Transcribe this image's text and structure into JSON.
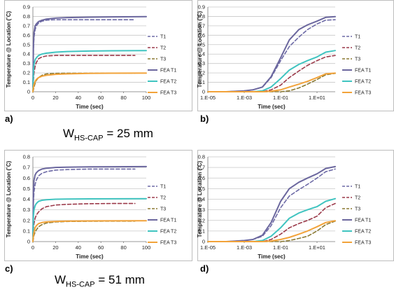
{
  "chart_data": [
    {
      "id": "a",
      "type": "line",
      "panel_label": "a)",
      "xscale": "linear",
      "xlim": [
        0,
        100
      ],
      "ylim": [
        0,
        0.9
      ],
      "xticks": [
        "0",
        "20",
        "40",
        "60",
        "80",
        "100"
      ],
      "yticks": [
        "0",
        "0.1",
        "0.2",
        "0.3",
        "0.4",
        "0.5",
        "0.6",
        "0.7",
        "0.8",
        "0.9"
      ],
      "xlabel": "Time (sec)",
      "ylabel": "Temperature @ Location (˚C)",
      "grid": "horizontal",
      "legend_position": "right",
      "series": [
        {
          "name": "T1",
          "color": "#6d6aa6",
          "dash": true,
          "x": [
            0,
            0.5,
            1,
            2,
            3,
            5,
            8,
            12,
            20,
            30,
            50,
            70,
            90
          ],
          "y": [
            0.05,
            0.45,
            0.58,
            0.66,
            0.7,
            0.73,
            0.75,
            0.76,
            0.765,
            0.765,
            0.765,
            0.765,
            0.765
          ]
        },
        {
          "name": "T2",
          "color": "#9b3a4a",
          "dash": true,
          "x": [
            0,
            0.5,
            1,
            2,
            3,
            5,
            8,
            12,
            20,
            30,
            50,
            70,
            90
          ],
          "y": [
            0.0,
            0.12,
            0.2,
            0.27,
            0.31,
            0.35,
            0.37,
            0.38,
            0.385,
            0.385,
            0.385,
            0.385,
            0.385
          ]
        },
        {
          "name": "T3",
          "color": "#8b7a33",
          "dash": true,
          "x": [
            0,
            0.5,
            1,
            2,
            3,
            5,
            8,
            12,
            20,
            30,
            50,
            70,
            90
          ],
          "y": [
            0.0,
            0.02,
            0.05,
            0.09,
            0.12,
            0.15,
            0.175,
            0.19,
            0.195,
            0.197,
            0.197,
            0.197,
            0.197
          ]
        },
        {
          "name": "FEA T1",
          "color": "#6b679e",
          "dash": false,
          "x": [
            0,
            0.5,
            1,
            2,
            3,
            5,
            8,
            12,
            20,
            30,
            50,
            70,
            100
          ],
          "y": [
            0.05,
            0.5,
            0.63,
            0.7,
            0.72,
            0.745,
            0.76,
            0.772,
            0.782,
            0.788,
            0.792,
            0.795,
            0.797
          ]
        },
        {
          "name": "FEA T2",
          "color": "#40c4c0",
          "dash": false,
          "x": [
            0,
            0.5,
            1,
            2,
            3,
            5,
            8,
            12,
            20,
            30,
            50,
            70,
            100
          ],
          "y": [
            0.0,
            0.22,
            0.29,
            0.34,
            0.36,
            0.385,
            0.4,
            0.41,
            0.42,
            0.427,
            0.432,
            0.435,
            0.437
          ]
        },
        {
          "name": "FEA T3",
          "color": "#f2a33a",
          "dash": false,
          "x": [
            0,
            0.5,
            1,
            2,
            3,
            5,
            8,
            12,
            20,
            30,
            50,
            70,
            100
          ],
          "y": [
            0.0,
            0.05,
            0.08,
            0.11,
            0.13,
            0.15,
            0.165,
            0.175,
            0.185,
            0.19,
            0.195,
            0.197,
            0.198
          ]
        }
      ]
    },
    {
      "id": "b",
      "type": "line",
      "panel_label": "b)",
      "xscale": "log",
      "xlim": [
        1e-05,
        100
      ],
      "ylim": [
        0,
        0.9
      ],
      "xticks": [
        "1.E-05",
        "1.E-03",
        "1.E-01",
        "1.E+01"
      ],
      "xtick_values": [
        1e-05,
        0.001,
        0.1,
        10
      ],
      "yticks": [
        "0",
        "0.1",
        "0.2",
        "0.3",
        "0.4",
        "0.5",
        "0.6",
        "0.7",
        "0.8",
        "0.9"
      ],
      "xlabel": "Time (sec)",
      "ylabel": "Temperature @ Location (˚C)",
      "grid": "horizontal",
      "legend_position": "right",
      "series": [
        {
          "name": "T1",
          "color": "#6d6aa6",
          "dash": true,
          "x": [
            1e-05,
            0.0001,
            0.001,
            0.003,
            0.01,
            0.03,
            0.1,
            0.3,
            1,
            3,
            10,
            30,
            100
          ],
          "y": [
            0.0,
            0.0,
            0.01,
            0.02,
            0.05,
            0.15,
            0.33,
            0.48,
            0.58,
            0.66,
            0.72,
            0.76,
            0.765
          ]
        },
        {
          "name": "T2",
          "color": "#9b3a4a",
          "dash": true,
          "x": [
            1e-05,
            0.001,
            0.01,
            0.03,
            0.1,
            0.3,
            1,
            3,
            10,
            30,
            100
          ],
          "y": [
            0.0,
            0.0,
            0.0,
            0.02,
            0.07,
            0.15,
            0.22,
            0.28,
            0.33,
            0.37,
            0.385
          ]
        },
        {
          "name": "T3",
          "color": "#8b7a33",
          "dash": true,
          "x": [
            1e-05,
            0.01,
            0.1,
            0.3,
            1,
            3,
            10,
            30,
            100
          ],
          "y": [
            0.0,
            0.0,
            0.0,
            0.01,
            0.04,
            0.08,
            0.13,
            0.18,
            0.195
          ]
        },
        {
          "name": "FEA T1",
          "color": "#6b679e",
          "dash": false,
          "x": [
            1e-05,
            0.0001,
            0.001,
            0.003,
            0.01,
            0.03,
            0.1,
            0.3,
            1,
            3,
            10,
            30,
            100
          ],
          "y": [
            0.0,
            0.0,
            0.01,
            0.02,
            0.05,
            0.16,
            0.36,
            0.55,
            0.66,
            0.71,
            0.75,
            0.79,
            0.797
          ]
        },
        {
          "name": "FEA T2",
          "color": "#40c4c0",
          "dash": false,
          "x": [
            1e-05,
            0.003,
            0.01,
            0.03,
            0.1,
            0.3,
            1,
            3,
            10,
            30,
            100
          ],
          "y": [
            0.0,
            0.0,
            0.01,
            0.05,
            0.14,
            0.23,
            0.29,
            0.33,
            0.37,
            0.42,
            0.437
          ]
        },
        {
          "name": "FEA T3",
          "color": "#f2a33a",
          "dash": false,
          "x": [
            1e-05,
            0.01,
            0.03,
            0.1,
            0.3,
            1,
            3,
            10,
            30,
            100
          ],
          "y": [
            0.0,
            0.0,
            0.005,
            0.02,
            0.05,
            0.08,
            0.11,
            0.15,
            0.19,
            0.198
          ]
        }
      ]
    },
    {
      "id": "c",
      "type": "line",
      "panel_label": "c)",
      "xscale": "linear",
      "xlim": [
        0,
        100
      ],
      "ylim": [
        0,
        0.8
      ],
      "xticks": [
        "0",
        "20",
        "40",
        "60",
        "80",
        "100"
      ],
      "yticks": [
        "0",
        "0.1",
        "0.2",
        "0.3",
        "0.4",
        "0.5",
        "0.6",
        "0.7",
        "0.8"
      ],
      "xlabel": "Time (sec)",
      "ylabel": "Temperature @ Location (˚C)",
      "grid": "horizontal",
      "legend_position": "right",
      "series": [
        {
          "name": "T1",
          "color": "#6d6aa6",
          "dash": true,
          "x": [
            0,
            0.5,
            1,
            2,
            3,
            5,
            8,
            12,
            20,
            30,
            50,
            70,
            90
          ],
          "y": [
            0.05,
            0.38,
            0.47,
            0.54,
            0.58,
            0.62,
            0.645,
            0.66,
            0.675,
            0.68,
            0.685,
            0.685,
            0.685
          ]
        },
        {
          "name": "T2",
          "color": "#9b3a4a",
          "dash": true,
          "x": [
            0,
            0.5,
            1,
            2,
            3,
            5,
            8,
            12,
            20,
            30,
            50,
            70,
            90
          ],
          "y": [
            0.0,
            0.12,
            0.17,
            0.22,
            0.25,
            0.28,
            0.31,
            0.33,
            0.345,
            0.352,
            0.358,
            0.36,
            0.36
          ]
        },
        {
          "name": "T3",
          "color": "#8b7a33",
          "dash": true,
          "x": [
            0,
            0.5,
            1,
            2,
            3,
            5,
            8,
            12,
            20,
            30,
            50,
            70,
            90
          ],
          "y": [
            0.0,
            0.03,
            0.06,
            0.09,
            0.11,
            0.14,
            0.16,
            0.175,
            0.185,
            0.19,
            0.192,
            0.193,
            0.193
          ]
        },
        {
          "name": "FEA T1",
          "color": "#6b679e",
          "dash": false,
          "x": [
            0,
            0.5,
            1,
            2,
            3,
            5,
            8,
            12,
            20,
            30,
            50,
            70,
            100
          ],
          "y": [
            0.05,
            0.5,
            0.58,
            0.63,
            0.65,
            0.67,
            0.685,
            0.693,
            0.7,
            0.703,
            0.706,
            0.707,
            0.708
          ]
        },
        {
          "name": "FEA T2",
          "color": "#40c4c0",
          "dash": false,
          "x": [
            0,
            0.5,
            1,
            2,
            3,
            5,
            8,
            12,
            20,
            30,
            50,
            70,
            100
          ],
          "y": [
            0.0,
            0.25,
            0.3,
            0.34,
            0.36,
            0.38,
            0.39,
            0.395,
            0.4,
            0.402,
            0.403,
            0.404,
            0.405
          ]
        },
        {
          "name": "FEA T3",
          "color": "#f2a33a",
          "dash": false,
          "x": [
            0,
            0.5,
            1,
            2,
            3,
            5,
            8,
            12,
            20,
            30,
            50,
            70,
            100
          ],
          "y": [
            0.0,
            0.06,
            0.09,
            0.13,
            0.15,
            0.17,
            0.18,
            0.186,
            0.19,
            0.193,
            0.195,
            0.196,
            0.197
          ]
        }
      ]
    },
    {
      "id": "d",
      "type": "line",
      "panel_label": "d)",
      "xscale": "log",
      "xlim": [
        1e-05,
        100
      ],
      "ylim": [
        0,
        0.8
      ],
      "xticks": [
        "1.E-05",
        "1.E-03",
        "1.E-01",
        "1.E+01"
      ],
      "xtick_values": [
        1e-05,
        0.001,
        0.1,
        10
      ],
      "yticks": [
        "0",
        "0.1",
        "0.2",
        "0.3",
        "0.4",
        "0.5",
        "0.6",
        "0.7",
        "0.8"
      ],
      "xlabel": "Time (sec)",
      "ylabel": "Temperature @ Location (˚C)",
      "grid": "horizontal",
      "legend_position": "right",
      "series": [
        {
          "name": "T1",
          "color": "#6d6aa6",
          "dash": true,
          "x": [
            1e-05,
            0.0001,
            0.001,
            0.003,
            0.01,
            0.03,
            0.1,
            0.3,
            1,
            3,
            10,
            30,
            100
          ],
          "y": [
            0.0,
            0.0,
            0.01,
            0.02,
            0.05,
            0.15,
            0.32,
            0.43,
            0.49,
            0.54,
            0.6,
            0.66,
            0.685
          ]
        },
        {
          "name": "T2",
          "color": "#9b3a4a",
          "dash": true,
          "x": [
            1e-05,
            0.001,
            0.01,
            0.03,
            0.1,
            0.3,
            1,
            3,
            10,
            30,
            100
          ],
          "y": [
            0.0,
            0.0,
            0.0,
            0.02,
            0.07,
            0.13,
            0.17,
            0.2,
            0.24,
            0.32,
            0.36
          ]
        },
        {
          "name": "T3",
          "color": "#8b7a33",
          "dash": true,
          "x": [
            1e-05,
            0.01,
            0.1,
            0.3,
            1,
            3,
            10,
            30,
            100
          ],
          "y": [
            0.0,
            0.0,
            0.0,
            0.01,
            0.03,
            0.05,
            0.1,
            0.16,
            0.193
          ]
        },
        {
          "name": "FEA T1",
          "color": "#6b679e",
          "dash": false,
          "x": [
            1e-05,
            0.0001,
            0.001,
            0.003,
            0.01,
            0.03,
            0.1,
            0.3,
            1,
            3,
            10,
            30,
            100
          ],
          "y": [
            0.0,
            0.0,
            0.01,
            0.02,
            0.06,
            0.18,
            0.38,
            0.5,
            0.56,
            0.6,
            0.64,
            0.69,
            0.708
          ]
        },
        {
          "name": "FEA T2",
          "color": "#40c4c0",
          "dash": false,
          "x": [
            1e-05,
            0.003,
            0.01,
            0.03,
            0.1,
            0.3,
            1,
            3,
            10,
            30,
            100
          ],
          "y": [
            0.0,
            0.0,
            0.01,
            0.05,
            0.13,
            0.22,
            0.27,
            0.3,
            0.33,
            0.38,
            0.405
          ]
        },
        {
          "name": "FEA T3",
          "color": "#f2a33a",
          "dash": false,
          "x": [
            1e-05,
            0.01,
            0.03,
            0.1,
            0.3,
            1,
            3,
            10,
            30,
            100
          ],
          "y": [
            0.0,
            0.0,
            0.005,
            0.02,
            0.04,
            0.07,
            0.1,
            0.14,
            0.18,
            0.197
          ]
        }
      ]
    }
  ],
  "captions": [
    {
      "prefix": "W",
      "subscript": "HS-CAP",
      "suffix": " = 25 mm"
    },
    {
      "prefix": "W",
      "subscript": "HS-CAP",
      "suffix": " = 51 mm"
    }
  ]
}
